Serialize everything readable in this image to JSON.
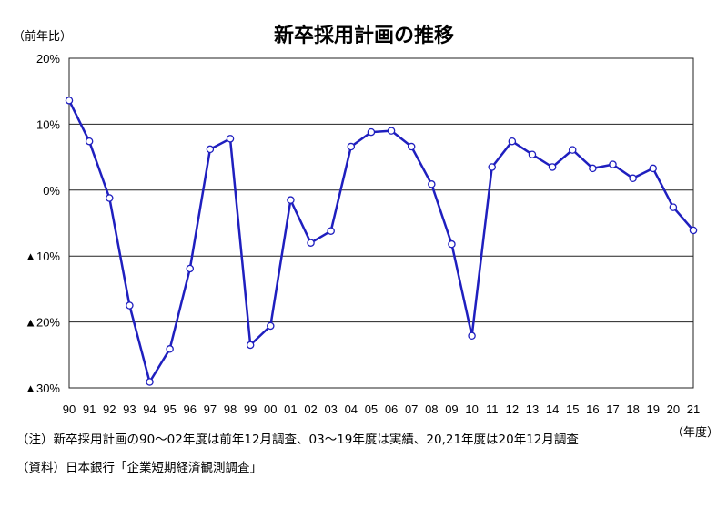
{
  "chart_data": {
    "type": "line",
    "title": "新卒採用計画の推移",
    "ylabel": "（前年比）",
    "xlabel": "（年度）",
    "ylim": [
      -30,
      20
    ],
    "y_ticks": [
      20,
      10,
      0,
      -10,
      -20,
      -30
    ],
    "y_tick_labels": [
      "20%",
      "10%",
      "0%",
      "▲10%",
      "▲20%",
      "▲30%"
    ],
    "categories": [
      "90",
      "91",
      "92",
      "93",
      "94",
      "95",
      "96",
      "97",
      "98",
      "99",
      "00",
      "01",
      "02",
      "03",
      "04",
      "05",
      "06",
      "07",
      "08",
      "09",
      "10",
      "11",
      "12",
      "13",
      "14",
      "15",
      "16",
      "17",
      "18",
      "19",
      "20",
      "21"
    ],
    "series": [
      {
        "name": "",
        "color": "#1f1fbf",
        "values": [
          13.6,
          7.4,
          -1.2,
          -17.5,
          -29.1,
          -24.1,
          -11.9,
          6.2,
          7.8,
          -23.5,
          -20.6,
          -1.5,
          -8.0,
          -6.2,
          6.6,
          8.8,
          9.0,
          6.6,
          0.9,
          -8.2,
          -22.1,
          3.5,
          7.4,
          5.4,
          3.5,
          6.1,
          3.3,
          3.9,
          1.8,
          3.3,
          -2.6,
          -6.1
        ]
      }
    ]
  },
  "notes": {
    "note": "（注）新卒採用計画の90～02年度は前年12月調査、03～19年度は実績、20,21年度は20年12月調査",
    "source": "（資料）日本銀行「企業短期経済観測調査」"
  }
}
